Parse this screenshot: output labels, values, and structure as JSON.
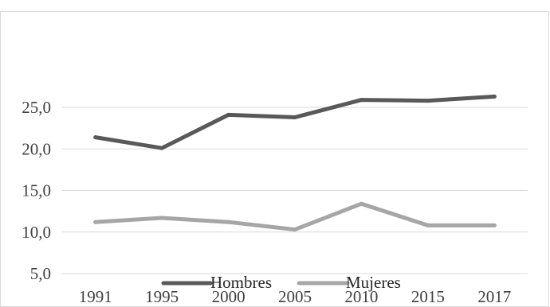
{
  "chart_data": {
    "type": "line",
    "title": "",
    "xlabel": "",
    "ylabel": "",
    "categories": [
      "1991",
      "1995",
      "2000",
      "2005",
      "2010",
      "2015",
      "2017"
    ],
    "y_tick_labels": [
      "5,0",
      "10,0",
      "15,0",
      "20,0",
      "25,0"
    ],
    "y_ticks": [
      5,
      10,
      15,
      20,
      25
    ],
    "ylim": [
      5,
      30
    ],
    "grid": true,
    "legend_position": "bottom",
    "series": [
      {
        "name": "Hombres",
        "color": "#595959",
        "values": [
          21.4,
          20.1,
          24.1,
          23.8,
          25.9,
          25.8,
          26.3
        ]
      },
      {
        "name": "Mujeres",
        "color": "#a6a6a6",
        "values": [
          11.2,
          11.7,
          11.2,
          10.3,
          13.4,
          10.8,
          10.8
        ]
      }
    ],
    "colors": {
      "gridline": "#d9d9d9",
      "frame": "#d9d9d9",
      "tick_text": "#404040"
    }
  }
}
